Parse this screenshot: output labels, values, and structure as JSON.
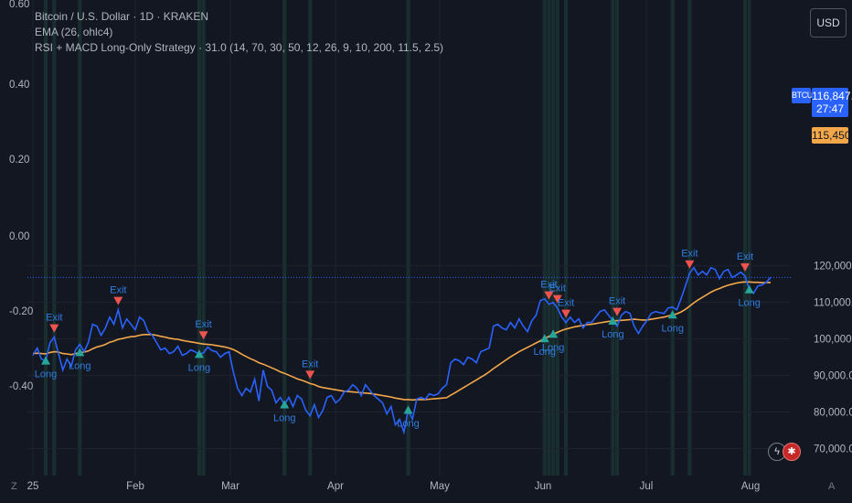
{
  "header": {
    "symbol_line": "Bitcoin / U.S. Dollar · 1D · KRAKEN",
    "ema_line": "EMA (26, ohlc4)",
    "strategy_line": "RSI + MACD Long-Only Strategy · 31.0 (14, 70, 30, 50, 12, 26, 9, 10, 200, 11.5, 2.5)",
    "currency_button": "USD"
  },
  "price_tags": {
    "symbol": "BTCUSD",
    "last_price": "116,847.6",
    "countdown": "27:47",
    "ema_value": "115,450.3"
  },
  "corner_labels": {
    "left": "Z",
    "right": "A"
  },
  "colors": {
    "background": "#131722",
    "price_line": "#2962ff",
    "ema_line": "#f5a84a",
    "long_marker": "#26a69a",
    "exit_marker": "#ef5350",
    "session_band": "#1d3b35",
    "label_text": "#2f7de1"
  },
  "chart_data": {
    "type": "line",
    "x_labels": [
      "25",
      "Feb",
      "Mar",
      "Apr",
      "May",
      "Jun",
      "Jul",
      "Aug"
    ],
    "right_axis": {
      "ticks": [
        120000,
        110000,
        100000,
        90000,
        80000,
        70000
      ],
      "tick_labels": [
        "120,000.0",
        "110,000.0",
        "100,000.0",
        "90,000.0",
        "80,000.0",
        "70,000.0"
      ],
      "range": [
        70000,
        125000
      ]
    },
    "left_axis": {
      "ticks": [
        0.6,
        0.4,
        0.2,
        0.0,
        -0.2,
        -0.4
      ],
      "tick_labels": [
        "0.60",
        "0.40",
        "0.20",
        "0.00",
        "-0.20",
        "-0.40"
      ]
    },
    "grid": true,
    "series": [
      {
        "name": "BTCUSD",
        "values": [
          95500,
          97500,
          94500,
          94000,
          99000,
          100500,
          96000,
          91500,
          94500,
          92500,
          97000,
          98500,
          96500,
          99000,
          104000,
          103500,
          101000,
          103000,
          106000,
          104000,
          108000,
          103000,
          105500,
          104000,
          102500,
          106000,
          105000,
          102000,
          101000,
          99000,
          97000,
          97500,
          96000,
          96500,
          98000,
          95500,
          96000,
          97000,
          96500,
          95800,
          96200,
          97800,
          96800,
          96500,
          95000,
          96000,
          96500,
          91000,
          86500,
          84500,
          86500,
          85500,
          89000,
          83000,
          91500,
          87000,
          86000,
          82500,
          84000,
          82000,
          84000,
          81500,
          84500,
          83500,
          80500,
          79000,
          82000,
          78500,
          80500,
          84000,
          84500,
          82500,
          83500,
          85500,
          86000,
          87500,
          86500,
          84500,
          87500,
          86000,
          84500,
          83500,
          82500,
          79500,
          81500,
          76500,
          78000,
          74500,
          80500,
          78000,
          83500,
          84000,
          83500,
          85000,
          84500,
          85000,
          86500,
          87500,
          93500,
          94500,
          94000,
          93000,
          95000,
          94500,
          93500,
          96500,
          97000,
          97500,
          103500,
          104000,
          103000,
          102500,
          104500,
          103000,
          105500,
          103500,
          102000,
          105000,
          106500,
          110500,
          111000,
          109500,
          110000,
          108500,
          106000,
          104500,
          106000,
          104500,
          105500,
          103000,
          104500,
          104500,
          106000,
          107500,
          108000,
          106500,
          105000,
          103500,
          106500,
          107500,
          107000,
          103500,
          101500,
          103500,
          105000,
          107000,
          107500,
          107200,
          107000,
          108500,
          108700,
          108000,
          111000,
          114500,
          118000,
          119500,
          117500,
          118500,
          117500,
          119500,
          119000,
          116500,
          118500,
          119000,
          116800,
          117500,
          118300,
          117200,
          113500,
          112500,
          114500,
          114800,
          115500,
          116847.6
        ],
        "source_note": ""
      },
      {
        "name": "EMA (26, ohlc4)",
        "values": [
          96000,
          96100,
          96000,
          95900,
          96300,
          96500,
          96400,
          96000,
          95900,
          95700,
          96000,
          96300,
          96400,
          96700,
          97300,
          97800,
          98100,
          98500,
          99100,
          99400,
          99900,
          100100,
          100400,
          100600,
          100700,
          101000,
          101200,
          101200,
          101200,
          101000,
          100700,
          100500,
          100200,
          100000,
          99900,
          99600,
          99400,
          99200,
          99000,
          98800,
          98600,
          98500,
          98400,
          98200,
          98000,
          97800,
          97500,
          97100,
          96500,
          95800,
          95200,
          94600,
          94100,
          93500,
          93100,
          92600,
          92100,
          91600,
          91000,
          90600,
          90100,
          89600,
          89100,
          88700,
          88300,
          87800,
          87500,
          87000,
          86700,
          86500,
          86300,
          86100,
          85900,
          85700,
          85600,
          85500,
          85400,
          85300,
          85200,
          85100,
          84900,
          84700,
          84500,
          84300,
          84100,
          83800,
          83600,
          83400,
          83400,
          83300,
          83400,
          83400,
          83400,
          83500,
          83600,
          83700,
          83800,
          83900,
          84600,
          85300,
          86000,
          86700,
          87400,
          88100,
          88800,
          89500,
          90200,
          91000,
          91900,
          92700,
          93500,
          94300,
          95100,
          95800,
          96500,
          97100,
          97700,
          98300,
          98900,
          99500,
          100100,
          100700,
          101300,
          101800,
          102300,
          102700,
          103000,
          103300,
          103500,
          103700,
          103900,
          104000,
          104200,
          104400,
          104600,
          104800,
          104900,
          105000,
          105100,
          105200,
          105300,
          105400,
          105300,
          105200,
          105200,
          105400,
          105600,
          105800,
          106000,
          106300,
          106600,
          106900,
          107400,
          108100,
          109000,
          109900,
          110700,
          111400,
          112100,
          112800,
          113400,
          113800,
          114300,
          114700,
          115000,
          115300,
          115500,
          115600,
          115600,
          115500,
          115500,
          115400,
          115450.3,
          115450.3
        ],
        "source_note": ""
      }
    ],
    "signals": [
      {
        "type": "Long",
        "index": 3
      },
      {
        "type": "Exit",
        "index": 5
      },
      {
        "type": "Long",
        "index": 11
      },
      {
        "type": "Exit",
        "index": 20
      },
      {
        "type": "Long",
        "index": 39
      },
      {
        "type": "Exit",
        "index": 40
      },
      {
        "type": "Long",
        "index": 59
      },
      {
        "type": "Exit",
        "index": 65
      },
      {
        "type": "Long",
        "index": 88
      },
      {
        "type": "Long",
        "index": 120
      },
      {
        "type": "Exit",
        "index": 121
      },
      {
        "type": "Long",
        "index": 122
      },
      {
        "type": "Exit",
        "index": 123
      },
      {
        "type": "Exit",
        "index": 125
      },
      {
        "type": "Long",
        "index": 136
      },
      {
        "type": "Exit",
        "index": 137
      },
      {
        "type": "Long",
        "index": 150
      },
      {
        "type": "Exit",
        "index": 154
      },
      {
        "type": "Exit",
        "index": 167
      },
      {
        "type": "Long",
        "index": 168
      }
    ],
    "session_bands": [
      3,
      5,
      11,
      39,
      40,
      59,
      65,
      88,
      120,
      121,
      122,
      123,
      125,
      136,
      137,
      150,
      154,
      167,
      168
    ]
  }
}
